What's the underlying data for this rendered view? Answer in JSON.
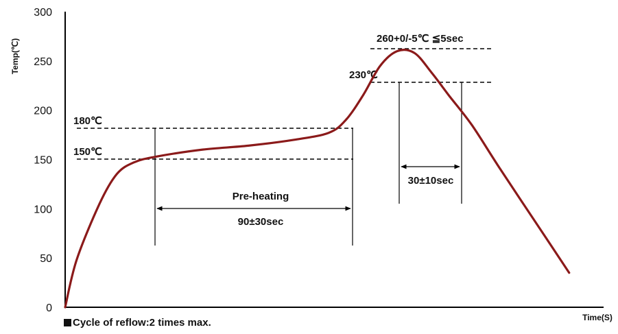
{
  "chart_data": {
    "type": "line",
    "xlabel": "Time(S)",
    "ylabel": "Temp(℃)",
    "ylim": [
      0,
      300
    ],
    "yticks": [
      "0",
      "50",
      "100",
      "150",
      "200",
      "250",
      "300"
    ],
    "series": [
      {
        "values": [
          [
            0,
            0
          ],
          [
            10,
            48
          ],
          [
            30,
            105
          ],
          [
            45,
            135
          ],
          [
            60,
            147
          ],
          [
            80,
            153
          ],
          [
            120,
            160
          ],
          [
            160,
            164
          ],
          [
            200,
            170
          ],
          [
            230,
            177
          ],
          [
            245,
            190
          ],
          [
            260,
            215
          ],
          [
            275,
            245
          ],
          [
            290,
            260
          ],
          [
            305,
            258
          ],
          [
            320,
            238
          ],
          [
            335,
            215
          ],
          [
            355,
            185
          ],
          [
            380,
            140
          ],
          [
            420,
            70
          ],
          [
            440,
            35
          ]
        ]
      }
    ],
    "color": "#8b1a1a",
    "reference_lines": [
      {
        "label": "260+0/-5℃ ≦5sec",
        "y": 262
      },
      {
        "label": "230℃",
        "y": 228
      },
      {
        "label": "180℃",
        "y": 181
      },
      {
        "label": "150℃",
        "y": 150
      }
    ],
    "annotations": [
      {
        "label": "Pre-heating"
      },
      {
        "label": "90±30sec"
      },
      {
        "label": "30±10sec"
      }
    ]
  },
  "footnote": "Cycle of reflow:2 times max."
}
